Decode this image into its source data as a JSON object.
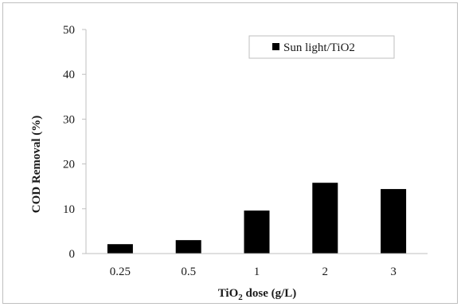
{
  "chart_data": {
    "type": "bar",
    "categories": [
      "0.25",
      "0.5",
      "1",
      "2",
      "3"
    ],
    "series": [
      {
        "name": "Sun light/TiO2",
        "values": [
          2.1,
          3.0,
          9.6,
          15.8,
          14.4
        ],
        "color": "#000000"
      }
    ],
    "xlabel_main": "TiO",
    "xlabel_sub": "2",
    "xlabel_rest": " dose (g/L)",
    "ylabel": "COD Removal (%)",
    "ylim": [
      0,
      50
    ],
    "yticks": [
      "0",
      "10",
      "20",
      "30",
      "40",
      "50"
    ],
    "legend_position": "top-right",
    "grid": false
  }
}
